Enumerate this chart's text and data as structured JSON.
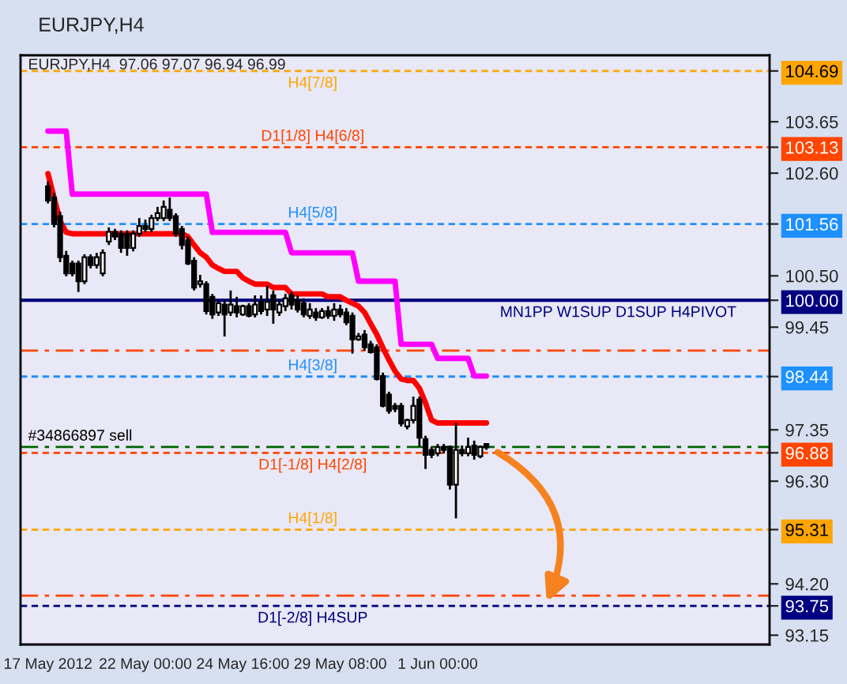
{
  "chart_data": {
    "type": "candlestick",
    "title": "EURJPY,H4",
    "subtitle": "EURJPY,H4  97.06 97.07 96.94 96.99",
    "categories": [
      "17 May 2012",
      null,
      null,
      null,
      null,
      null,
      null,
      null,
      null,
      null,
      null,
      null,
      null,
      null,
      null,
      null,
      "22 May 00:00",
      null,
      null,
      null,
      null,
      null,
      null,
      null,
      null,
      null,
      null,
      null,
      null,
      null,
      null,
      null,
      "24 May 16:00",
      null,
      null,
      null,
      null,
      null,
      null,
      null,
      null,
      null,
      null,
      null,
      null,
      null,
      null,
      null,
      "29 May 08:00",
      null,
      null,
      null,
      null,
      null,
      null,
      null,
      null,
      null,
      null,
      null,
      null,
      null,
      null,
      null,
      "1 Jun 00:00",
      null,
      null,
      null,
      null,
      null,
      null,
      null,
      null,
      null,
      null,
      null,
      null,
      null,
      null,
      null,
      null,
      null,
      null,
      null,
      null,
      null,
      null,
      null,
      null,
      null,
      null,
      null,
      null,
      null,
      null,
      null,
      null,
      null,
      null,
      null,
      null,
      null,
      null,
      null,
      null,
      null,
      null,
      null,
      null,
      null,
      null,
      null,
      null,
      null,
      null,
      null,
      null,
      null,
      null
    ],
    "ohlc": [
      [
        102.33,
        102.43,
        101.98,
        102.04
      ],
      [
        102.1,
        102.2,
        101.49,
        101.56
      ],
      [
        101.72,
        101.81,
        100.78,
        100.88
      ],
      [
        100.91,
        101.01,
        100.49,
        100.55
      ],
      [
        100.75,
        100.81,
        100.49,
        100.55
      ],
      [
        100.75,
        100.81,
        100.17,
        100.39
      ],
      [
        100.39,
        100.94,
        100.33,
        100.88
      ],
      [
        100.88,
        100.94,
        100.65,
        100.72
      ],
      [
        100.72,
        100.97,
        100.65,
        100.88
      ],
      [
        100.55,
        101.04,
        100.49,
        100.97
      ],
      [
        101.2,
        101.49,
        101.13,
        101.4
      ],
      [
        101.4,
        101.46,
        101.23,
        101.3
      ],
      [
        101.36,
        101.43,
        100.97,
        101.07
      ],
      [
        101.36,
        101.43,
        100.91,
        101.07
      ],
      [
        101.07,
        101.43,
        101.0,
        101.36
      ],
      [
        101.36,
        101.68,
        101.3,
        101.52
      ],
      [
        101.52,
        101.65,
        101.39,
        101.46
      ],
      [
        101.46,
        101.75,
        101.39,
        101.68
      ],
      [
        101.68,
        101.91,
        101.62,
        101.78
      ],
      [
        101.68,
        102.04,
        101.62,
        101.91
      ],
      [
        101.85,
        102.1,
        101.62,
        101.68
      ],
      [
        101.72,
        101.78,
        101.3,
        101.36
      ],
      [
        101.46,
        101.52,
        101.04,
        101.13
      ],
      [
        101.23,
        101.3,
        100.72,
        100.75
      ],
      [
        100.81,
        100.88,
        100.2,
        100.26
      ],
      [
        100.33,
        100.52,
        100.26,
        100.39
      ],
      [
        100.33,
        100.39,
        99.71,
        99.78
      ],
      [
        100.07,
        100.13,
        99.62,
        99.71
      ],
      [
        99.75,
        100.0,
        99.68,
        99.94
      ],
      [
        99.91,
        100.0,
        99.26,
        99.71
      ],
      [
        99.75,
        100.2,
        99.68,
        99.91
      ],
      [
        99.88,
        100.07,
        99.65,
        99.75
      ],
      [
        99.71,
        99.91,
        99.68,
        99.88
      ],
      [
        99.88,
        99.94,
        99.65,
        99.68
      ],
      [
        99.71,
        100.1,
        99.65,
        99.91
      ],
      [
        99.97,
        100.1,
        99.71,
        99.78
      ],
      [
        99.81,
        100.3,
        99.68,
        99.97
      ],
      [
        100.1,
        100.2,
        99.52,
        99.81
      ],
      [
        99.75,
        100.0,
        99.68,
        99.91
      ],
      [
        99.88,
        100.13,
        99.78,
        100.04
      ],
      [
        100.1,
        100.17,
        99.81,
        99.91
      ],
      [
        100.0,
        100.1,
        99.75,
        99.81
      ],
      [
        99.94,
        100.04,
        99.65,
        99.71
      ],
      [
        99.68,
        99.94,
        99.62,
        99.81
      ],
      [
        99.75,
        99.84,
        99.58,
        99.65
      ],
      [
        99.65,
        99.84,
        99.62,
        99.78
      ],
      [
        99.78,
        99.88,
        99.62,
        99.68
      ],
      [
        99.68,
        99.94,
        99.58,
        99.81
      ],
      [
        99.81,
        99.91,
        99.65,
        99.71
      ],
      [
        99.75,
        99.84,
        99.49,
        99.55
      ],
      [
        99.68,
        99.75,
        98.91,
        99.2
      ],
      [
        99.2,
        99.33,
        99.17,
        99.26
      ],
      [
        99.3,
        99.39,
        98.97,
        99.04
      ],
      [
        99.1,
        99.17,
        98.91,
        98.94
      ],
      [
        99.04,
        99.1,
        98.36,
        98.39
      ],
      [
        98.45,
        98.52,
        97.81,
        97.84
      ],
      [
        98.07,
        98.13,
        97.68,
        97.74
      ],
      [
        97.84,
        97.9,
        97.71,
        97.78
      ],
      [
        97.84,
        97.9,
        97.42,
        97.48
      ],
      [
        97.42,
        97.58,
        97.36,
        97.55
      ],
      [
        97.55,
        98.03,
        97.48,
        97.84
      ],
      [
        97.97,
        98.03,
        97.0,
        97.19
      ],
      [
        97.16,
        97.23,
        96.55,
        96.84
      ],
      [
        96.94,
        97.0,
        96.77,
        96.84
      ],
      [
        96.87,
        97.06,
        96.81,
        97.0
      ],
      [
        97.0,
        97.06,
        96.87,
        96.94
      ],
      [
        97.0,
        97.03,
        96.13,
        96.23
      ],
      [
        96.23,
        97.49,
        95.54,
        96.94
      ],
      [
        96.94,
        97.03,
        96.81,
        96.87
      ],
      [
        96.87,
        97.19,
        96.81,
        97.0
      ],
      [
        97.03,
        97.13,
        96.74,
        96.84
      ],
      [
        96.81,
        97.03,
        96.77,
        97.0
      ],
      [
        97.06,
        97.07,
        96.94,
        96.99
      ],
      null,
      null,
      null,
      null,
      null,
      null,
      null,
      null,
      null,
      null,
      null,
      null,
      null,
      null,
      null,
      null,
      null,
      null,
      null,
      null,
      null,
      null,
      null,
      null,
      null,
      null,
      null,
      null,
      null,
      null,
      null,
      null,
      null,
      null,
      null,
      null,
      null,
      null,
      null,
      null,
      null,
      null,
      null,
      null,
      null,
      null
    ],
    "series": [
      {
        "type": "line",
        "color": "#ff0000",
        "values": [
          102.59,
          102.1,
          101.62,
          101.39,
          101.36,
          101.36,
          101.36,
          101.36,
          101.36,
          101.36,
          101.36,
          101.36,
          101.36,
          101.36,
          101.36,
          101.36,
          101.36,
          101.36,
          101.36,
          101.36,
          101.36,
          101.36,
          101.36,
          101.3,
          101.13,
          100.97,
          100.88,
          100.72,
          100.65,
          100.59,
          100.59,
          100.59,
          100.46,
          100.39,
          100.33,
          100.33,
          100.33,
          100.26,
          100.26,
          100.26,
          100.13,
          100.13,
          100.13,
          100.13,
          100.13,
          100.13,
          100.07,
          100.07,
          100.07,
          100.0,
          99.94,
          99.88,
          99.75,
          99.52,
          99.3,
          99.03,
          98.78,
          98.55,
          98.39,
          98.36,
          98.36,
          98.2,
          97.9,
          97.55,
          97.49,
          97.49,
          97.49,
          97.49,
          97.49,
          97.49,
          97.49,
          97.49,
          97.49,
          null,
          null,
          null,
          null,
          null,
          null,
          null,
          null,
          null,
          null,
          null,
          null,
          null,
          null,
          null,
          null,
          null,
          null,
          null,
          null,
          null,
          null,
          null,
          null,
          null,
          null,
          null,
          null,
          null,
          null,
          null,
          null,
          null,
          null,
          null,
          null,
          null,
          null,
          null,
          null,
          null,
          null,
          null,
          null,
          null,
          null
        ]
      },
      {
        "type": "line",
        "color": "#ff00ff",
        "values": [
          103.46,
          103.46,
          103.46,
          103.46,
          102.17,
          102.17,
          102.17,
          102.17,
          102.17,
          102.17,
          102.17,
          102.17,
          102.17,
          102.17,
          102.17,
          102.17,
          102.17,
          102.17,
          102.17,
          102.17,
          102.17,
          102.17,
          102.17,
          102.17,
          102.17,
          102.17,
          102.17,
          101.39,
          101.39,
          101.39,
          101.39,
          101.39,
          101.39,
          101.39,
          101.39,
          101.39,
          101.39,
          101.39,
          101.39,
          101.39,
          100.97,
          100.97,
          100.97,
          100.97,
          100.97,
          100.97,
          100.97,
          100.97,
          100.97,
          100.97,
          100.97,
          100.39,
          100.39,
          100.39,
          100.39,
          100.39,
          100.39,
          100.39,
          99.1,
          99.1,
          99.1,
          99.1,
          99.1,
          99.1,
          98.81,
          98.81,
          98.81,
          98.81,
          98.81,
          98.81,
          98.45,
          98.45,
          98.45,
          null,
          null,
          null,
          null,
          null,
          null,
          null,
          null,
          null,
          null,
          null,
          null,
          null,
          null,
          null,
          null,
          null,
          null,
          null,
          null,
          null,
          null,
          null,
          null,
          null,
          null,
          null,
          null,
          null,
          null,
          null,
          null,
          null,
          null,
          null,
          null,
          null,
          null,
          null,
          null,
          null,
          null,
          null,
          null,
          null,
          null
        ]
      }
    ],
    "ylim": [
      92.96,
      105.01
    ],
    "yticks": [
      104.69,
      103.65,
      103.13,
      {
        "value": 102.6,
        "label": "102.60"
      },
      101.56,
      {
        "value": 100.5,
        "label": "100.50"
      },
      {
        "value": 100,
        "label": "100.00"
      },
      99.45,
      98.44,
      97.35,
      96.88,
      {
        "value": 96.3,
        "label": "96.30"
      },
      95.31,
      {
        "value": 94.2,
        "label": "94.20"
      },
      93.75,
      93.15
    ],
    "ref_lines": [
      {
        "axis": "y",
        "value": 104.69,
        "label": "H4[7/8]",
        "color": "#ffa500",
        "line_style": "dashed"
      },
      {
        "axis": "y",
        "value": 103.13,
        "label": "D1[1/8] H4[6/8]",
        "color": "#ff4500",
        "line_style": "dashed"
      },
      {
        "axis": "y",
        "value": 101.56,
        "label": "H4[5/8]",
        "color": "#1e90ff",
        "line_style": "dashed"
      },
      {
        "axis": "y",
        "value": 100.0,
        "label": "MN1PP W1SUP D1SUP H4PIVOT",
        "color": "#000080",
        "line_style": "solid"
      },
      {
        "axis": "y",
        "value": 98.97,
        "color": "#ff4500",
        "line_style": "dashdot"
      },
      {
        "axis": "y",
        "value": 98.44,
        "label": "H4[3/8]",
        "color": "#1e90ff",
        "line_style": "dashed"
      },
      {
        "axis": "y",
        "value": 97.0,
        "label": "#34866897 sell",
        "color": "#006400",
        "line_style": "dashdot"
      },
      {
        "axis": "y",
        "value": 96.88,
        "label": "D1[-1/8] H4[2/8]",
        "color": "#ff4500",
        "line_style": "dashed"
      },
      {
        "axis": "y",
        "value": 95.31,
        "label": "H4[1/8]",
        "color": "#ffa500",
        "line_style": "dashed"
      },
      {
        "axis": "y",
        "value": 93.96,
        "color": "#ff4500",
        "line_style": "dashdot"
      },
      {
        "axis": "y",
        "value": 93.75,
        "label": "D1[-2/8] H4SUP",
        "color": "#000080",
        "line_style": "dashed"
      }
    ],
    "grid": false,
    "legend": false
  }
}
